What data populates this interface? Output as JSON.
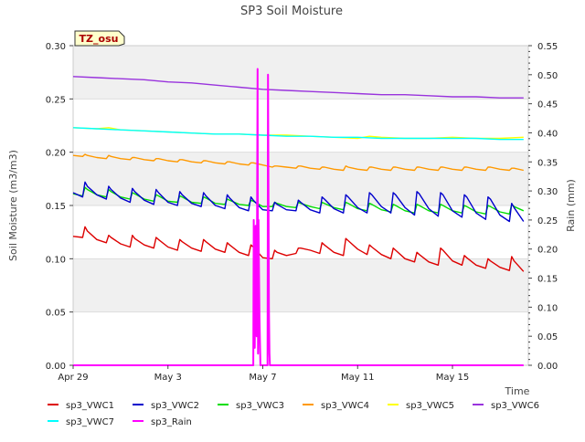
{
  "chart_data": {
    "type": "line",
    "title": "SP3 Soil Moisture",
    "badge": "TZ_osu",
    "xlabel": "Time",
    "ylabel": "Soil Moisture (m3/m3)",
    "y2label": "Rain (mm)",
    "xlim": [
      0,
      19.2
    ],
    "ylim": [
      0,
      0.3
    ],
    "y2lim": [
      0,
      0.55
    ],
    "x_ticks": [
      {
        "value": 0,
        "label": "Apr 29"
      },
      {
        "value": 4,
        "label": "May 3"
      },
      {
        "value": 8,
        "label": "May 7"
      },
      {
        "value": 12,
        "label": "May 11"
      },
      {
        "value": 16,
        "label": "May 15"
      }
    ],
    "y_ticks": [
      "0.00",
      "0.05",
      "0.10",
      "0.15",
      "0.20",
      "0.25",
      "0.30"
    ],
    "y2_ticks": [
      "0.00",
      "0.05",
      "0.10",
      "0.15",
      "0.20",
      "0.25",
      "0.30",
      "0.35",
      "0.40",
      "0.45",
      "0.50",
      "0.55"
    ],
    "grid": "horizontal bands",
    "legend_position": "bottom",
    "series": [
      {
        "name": "sp3_VWC1",
        "color": "#dd0000",
        "axis": "left",
        "x": [
          0,
          0.4,
          0.5,
          0.6,
          1.0,
          1.4,
          1.5,
          1.6,
          2.0,
          2.4,
          2.5,
          2.6,
          3.0,
          3.4,
          3.5,
          3.6,
          4.0,
          4.4,
          4.5,
          4.6,
          5.0,
          5.4,
          5.5,
          5.6,
          6.0,
          6.4,
          6.5,
          6.6,
          7.0,
          7.4,
          7.5,
          7.6,
          8.0,
          8.4,
          8.5,
          8.6,
          9.0,
          9.4,
          9.5,
          9.6,
          10.0,
          10.4,
          10.5,
          10.6,
          11.0,
          11.4,
          11.5,
          11.6,
          12.0,
          12.4,
          12.5,
          12.6,
          13.0,
          13.4,
          13.5,
          13.6,
          14.0,
          14.4,
          14.5,
          14.6,
          15.0,
          15.4,
          15.5,
          15.6,
          16.0,
          16.4,
          16.5,
          16.6,
          17.0,
          17.4,
          17.5,
          17.6,
          18.0,
          18.4,
          18.5,
          18.6,
          19.0
        ],
        "y": [
          0.121,
          0.12,
          0.13,
          0.126,
          0.118,
          0.115,
          0.122,
          0.12,
          0.114,
          0.111,
          0.122,
          0.119,
          0.113,
          0.11,
          0.12,
          0.118,
          0.111,
          0.108,
          0.118,
          0.116,
          0.11,
          0.107,
          0.118,
          0.116,
          0.109,
          0.106,
          0.115,
          0.113,
          0.106,
          0.103,
          0.113,
          0.111,
          0.101,
          0.1,
          0.108,
          0.106,
          0.103,
          0.105,
          0.11,
          0.11,
          0.108,
          0.105,
          0.115,
          0.113,
          0.106,
          0.103,
          0.119,
          0.117,
          0.109,
          0.104,
          0.113,
          0.111,
          0.104,
          0.1,
          0.11,
          0.108,
          0.1,
          0.097,
          0.106,
          0.104,
          0.097,
          0.094,
          0.11,
          0.108,
          0.098,
          0.094,
          0.103,
          0.101,
          0.094,
          0.091,
          0.1,
          0.098,
          0.092,
          0.089,
          0.102,
          0.098,
          0.088
        ]
      },
      {
        "name": "sp3_VWC2",
        "color": "#0000cc",
        "axis": "left",
        "x": [
          0,
          0.4,
          0.5,
          0.6,
          1.0,
          1.4,
          1.5,
          1.6,
          2.0,
          2.4,
          2.5,
          2.6,
          3.0,
          3.4,
          3.5,
          3.6,
          4.0,
          4.4,
          4.5,
          4.6,
          5.0,
          5.4,
          5.5,
          5.6,
          6.0,
          6.4,
          6.5,
          6.6,
          7.0,
          7.4,
          7.5,
          7.6,
          8.0,
          8.4,
          8.5,
          8.6,
          9.0,
          9.4,
          9.5,
          9.6,
          10.0,
          10.4,
          10.5,
          10.6,
          11.0,
          11.4,
          11.5,
          11.6,
          12.0,
          12.4,
          12.5,
          12.6,
          13.0,
          13.4,
          13.5,
          13.6,
          14.0,
          14.4,
          14.5,
          14.6,
          15.0,
          15.4,
          15.5,
          15.6,
          16.0,
          16.4,
          16.5,
          16.6,
          17.0,
          17.4,
          17.5,
          17.6,
          18.0,
          18.4,
          18.5,
          18.6,
          19.0
        ],
        "y": [
          0.162,
          0.158,
          0.172,
          0.168,
          0.16,
          0.156,
          0.168,
          0.165,
          0.157,
          0.153,
          0.166,
          0.163,
          0.155,
          0.151,
          0.165,
          0.162,
          0.153,
          0.15,
          0.163,
          0.16,
          0.152,
          0.149,
          0.162,
          0.159,
          0.15,
          0.147,
          0.16,
          0.157,
          0.148,
          0.145,
          0.158,
          0.155,
          0.146,
          0.145,
          0.153,
          0.151,
          0.146,
          0.145,
          0.155,
          0.153,
          0.146,
          0.143,
          0.158,
          0.156,
          0.147,
          0.143,
          0.16,
          0.158,
          0.148,
          0.143,
          0.162,
          0.16,
          0.149,
          0.143,
          0.162,
          0.16,
          0.148,
          0.141,
          0.163,
          0.161,
          0.147,
          0.14,
          0.162,
          0.16,
          0.145,
          0.139,
          0.16,
          0.158,
          0.143,
          0.137,
          0.158,
          0.156,
          0.141,
          0.135,
          0.152,
          0.148,
          0.135
        ]
      },
      {
        "name": "sp3_VWC3",
        "color": "#00dd00",
        "axis": "left",
        "x": [
          0,
          0.4,
          0.5,
          0.6,
          1.0,
          1.4,
          1.5,
          1.6,
          2.0,
          2.4,
          2.5,
          2.6,
          3.0,
          3.4,
          3.5,
          3.6,
          4.0,
          4.4,
          4.5,
          4.6,
          5.0,
          5.4,
          5.5,
          5.6,
          6.0,
          6.4,
          6.5,
          6.6,
          7.0,
          7.4,
          7.5,
          7.6,
          8.0,
          8.4,
          8.5,
          8.6,
          9.0,
          9.4,
          9.5,
          9.6,
          10.0,
          10.4,
          10.5,
          10.6,
          11.0,
          11.4,
          11.5,
          11.6,
          12.0,
          12.4,
          12.5,
          12.6,
          13.0,
          13.4,
          13.5,
          13.6,
          14.0,
          14.4,
          14.5,
          14.6,
          15.0,
          15.4,
          15.5,
          15.6,
          16.0,
          16.4,
          16.5,
          16.6,
          17.0,
          17.4,
          17.5,
          17.6,
          18.0,
          18.4,
          18.5,
          18.6,
          19.0
        ],
        "y": [
          0.161,
          0.159,
          0.167,
          0.165,
          0.16,
          0.158,
          0.165,
          0.163,
          0.158,
          0.156,
          0.162,
          0.161,
          0.156,
          0.154,
          0.16,
          0.159,
          0.154,
          0.153,
          0.159,
          0.158,
          0.153,
          0.152,
          0.158,
          0.157,
          0.152,
          0.151,
          0.156,
          0.155,
          0.151,
          0.15,
          0.155,
          0.154,
          0.149,
          0.149,
          0.153,
          0.152,
          0.149,
          0.148,
          0.153,
          0.152,
          0.149,
          0.147,
          0.153,
          0.152,
          0.148,
          0.146,
          0.153,
          0.152,
          0.147,
          0.145,
          0.152,
          0.151,
          0.146,
          0.144,
          0.151,
          0.15,
          0.145,
          0.143,
          0.151,
          0.15,
          0.145,
          0.143,
          0.151,
          0.15,
          0.145,
          0.143,
          0.15,
          0.149,
          0.144,
          0.142,
          0.15,
          0.149,
          0.144,
          0.142,
          0.151,
          0.149,
          0.145
        ]
      },
      {
        "name": "sp3_VWC4",
        "color": "#ff9900",
        "axis": "left",
        "x": [
          0,
          0.4,
          0.5,
          0.6,
          1.0,
          1.4,
          1.5,
          1.6,
          2.0,
          2.4,
          2.5,
          2.6,
          3.0,
          3.4,
          3.5,
          3.6,
          4.0,
          4.4,
          4.5,
          4.6,
          5.0,
          5.4,
          5.5,
          5.6,
          6.0,
          6.4,
          6.5,
          6.6,
          7.0,
          7.4,
          7.5,
          7.6,
          8.0,
          8.4,
          8.5,
          8.6,
          9.0,
          9.4,
          9.5,
          9.6,
          10.0,
          10.4,
          10.5,
          10.6,
          11.0,
          11.4,
          11.5,
          11.6,
          12.0,
          12.4,
          12.5,
          12.6,
          13.0,
          13.4,
          13.5,
          13.6,
          14.0,
          14.4,
          14.5,
          14.6,
          15.0,
          15.4,
          15.5,
          15.6,
          16.0,
          16.4,
          16.5,
          16.6,
          17.0,
          17.4,
          17.5,
          17.6,
          18.0,
          18.4,
          18.5,
          18.6,
          19.0
        ],
        "y": [
          0.197,
          0.196,
          0.198,
          0.197,
          0.195,
          0.194,
          0.197,
          0.196,
          0.194,
          0.193,
          0.195,
          0.195,
          0.193,
          0.192,
          0.194,
          0.194,
          0.192,
          0.191,
          0.193,
          0.193,
          0.191,
          0.19,
          0.192,
          0.192,
          0.19,
          0.189,
          0.191,
          0.191,
          0.189,
          0.188,
          0.19,
          0.19,
          0.188,
          0.186,
          0.187,
          0.187,
          0.186,
          0.185,
          0.187,
          0.187,
          0.185,
          0.184,
          0.186,
          0.186,
          0.184,
          0.183,
          0.187,
          0.186,
          0.184,
          0.183,
          0.186,
          0.186,
          0.184,
          0.183,
          0.186,
          0.186,
          0.184,
          0.183,
          0.186,
          0.186,
          0.184,
          0.183,
          0.186,
          0.186,
          0.184,
          0.183,
          0.186,
          0.186,
          0.184,
          0.183,
          0.186,
          0.186,
          0.184,
          0.183,
          0.185,
          0.185,
          0.183
        ]
      },
      {
        "name": "sp3_VWC5",
        "color": "#ffff00",
        "axis": "left",
        "x": [
          0,
          1,
          1.5,
          2,
          3,
          4,
          5,
          6,
          7,
          8,
          9,
          10,
          11,
          12,
          12.5,
          13,
          14,
          15,
          16,
          17,
          18,
          19
        ],
        "y": [
          0.223,
          0.222,
          0.223,
          0.221,
          0.22,
          0.219,
          0.218,
          0.217,
          0.217,
          0.216,
          0.216,
          0.215,
          0.214,
          0.213,
          0.215,
          0.214,
          0.213,
          0.213,
          0.214,
          0.213,
          0.213,
          0.214
        ]
      },
      {
        "name": "sp3_VWC6",
        "color": "#9933dd",
        "axis": "left",
        "x": [
          0,
          1,
          2,
          3,
          4,
          5,
          6,
          7,
          8,
          9,
          10,
          11,
          12,
          13,
          14,
          15,
          16,
          17,
          18,
          19
        ],
        "y": [
          0.271,
          0.27,
          0.269,
          0.268,
          0.266,
          0.265,
          0.263,
          0.261,
          0.259,
          0.258,
          0.257,
          0.256,
          0.255,
          0.254,
          0.254,
          0.253,
          0.252,
          0.252,
          0.251,
          0.251
        ]
      },
      {
        "name": "sp3_VWC7",
        "color": "#00ffff",
        "axis": "left",
        "x": [
          0,
          1,
          2,
          3,
          4,
          5,
          6,
          7,
          8,
          9,
          10,
          11,
          12,
          13,
          14,
          15,
          16,
          17,
          18,
          19
        ],
        "y": [
          0.223,
          0.222,
          0.221,
          0.22,
          0.219,
          0.218,
          0.217,
          0.217,
          0.216,
          0.215,
          0.215,
          0.214,
          0.214,
          0.213,
          0.213,
          0.213,
          0.213,
          0.213,
          0.212,
          0.212
        ]
      },
      {
        "name": "sp3_Rain",
        "color": "#ff00ff",
        "axis": "right",
        "x": [
          0,
          7.6,
          7.62,
          7.66,
          7.7,
          7.74,
          7.78,
          7.8,
          7.82,
          7.86,
          7.9,
          8.0,
          8.1,
          8.2,
          8.22,
          8.24,
          8.26,
          8.28,
          8.3,
          19.0
        ],
        "y": [
          0,
          0,
          0.25,
          0.03,
          0.24,
          0.05,
          0.51,
          0.02,
          0.25,
          0.08,
          0,
          0,
          0,
          0,
          0.5,
          0.3,
          0.1,
          0.02,
          0,
          0
        ]
      }
    ]
  }
}
